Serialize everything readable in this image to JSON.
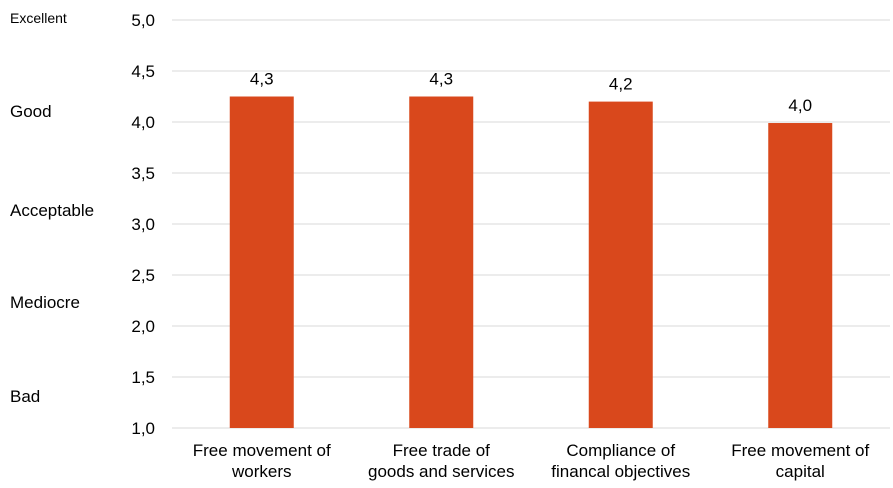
{
  "chart_data": {
    "type": "bar",
    "categories": [
      [
        "Free movement of",
        "workers"
      ],
      [
        "Free trade of",
        "goods and services"
      ],
      [
        "Compliance of",
        "financal objectives"
      ],
      [
        "Free movement of",
        "capital"
      ]
    ],
    "values": [
      4.25,
      4.25,
      4.2,
      3.99
    ],
    "data_labels": [
      "4,3",
      "4,3",
      "4,2",
      "4,0"
    ],
    "ylim": [
      1.0,
      5.0
    ],
    "yticks": [
      "1,0",
      "1,5",
      "2,0",
      "2,5",
      "3,0",
      "3,5",
      "4,0",
      "4,5",
      "5,0"
    ],
    "rating_labels": [
      "Excellent",
      "Good",
      "Acceptable",
      "Mediocre",
      "Bad"
    ],
    "grid": true,
    "bar_color": "#D9481C",
    "grid_color": "#D9D9D9",
    "title": "",
    "xlabel": "",
    "ylabel": ""
  }
}
